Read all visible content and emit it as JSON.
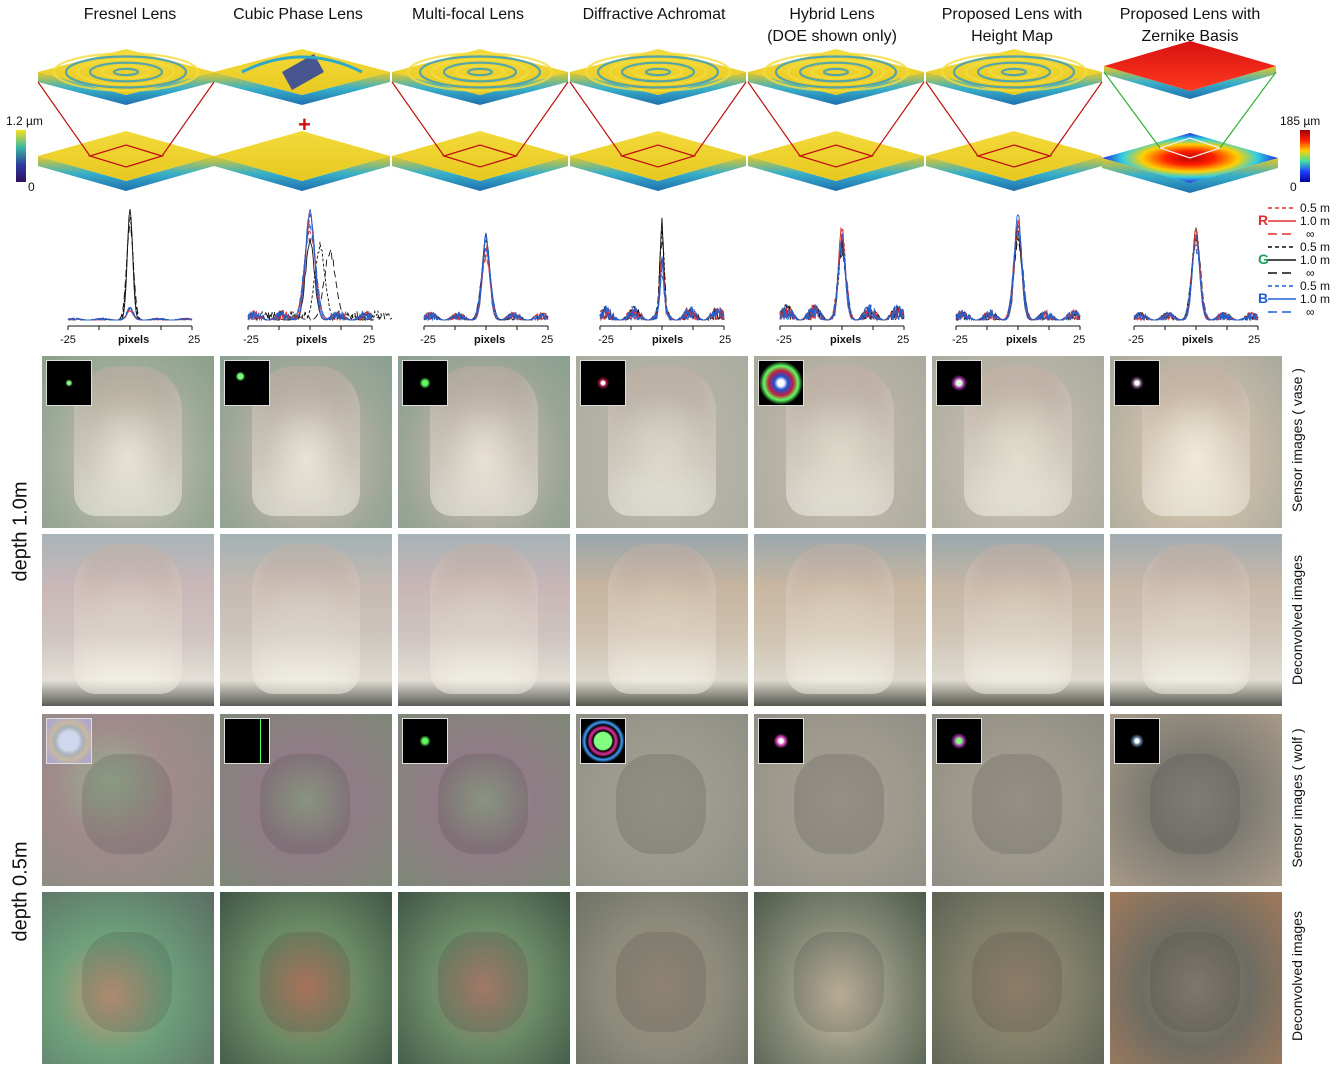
{
  "columns": [
    {
      "title": "Fresnel Lens"
    },
    {
      "title": "Cubic Phase Lens"
    },
    {
      "title": "Multi-focal Lens"
    },
    {
      "title": "Diffractive Achromat"
    },
    {
      "title": "Hybrid Lens\n(DOE shown only)"
    },
    {
      "title": "Proposed Lens with\nHeight Map"
    },
    {
      "title": "Proposed Lens with\nZernike Basis"
    }
  ],
  "colorbar_left": {
    "max": "1.2 µm",
    "min": "0"
  },
  "colorbar_right": {
    "max": "185 µm",
    "min": "0"
  },
  "psf_axis": {
    "xlabel": "pixels",
    "tick_min": "-25",
    "tick_max": "25"
  },
  "legend": {
    "channels": [
      {
        "name": "R",
        "color": "#e03030"
      },
      {
        "name": "G",
        "color": "#1aa05a"
      },
      {
        "name": "B",
        "color": "#2060d0"
      }
    ],
    "depths": [
      "0.5 m",
      "1.0 m",
      "∞"
    ]
  },
  "row_labels": {
    "sensor_vase": "Sensor images ( vase )",
    "deconv_vase": "Deconvolved images",
    "sensor_wolf": "Sensor images ( wolf )",
    "deconv_wolf": "Deconvolved images"
  },
  "depth_labels": {
    "top": "depth 1.0m",
    "bottom": "depth 0.5m"
  },
  "cross_mark": "+",
  "colors": {
    "surface_yellow": "#f0d830",
    "surface_teal": "#2aa0d0",
    "frame_red": "#c01010",
    "frame_green": "#30b030"
  }
}
